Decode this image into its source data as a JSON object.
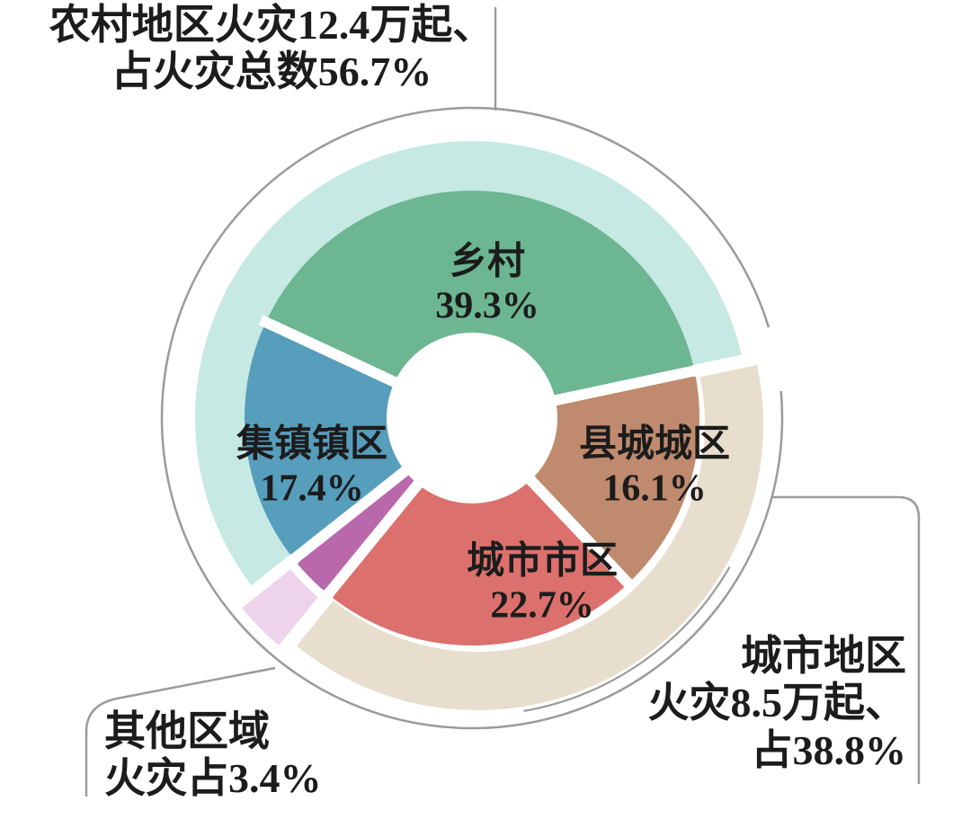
{
  "chart_data": {
    "type": "pie",
    "variant": "donut with grouped outer ring and callouts",
    "title": "",
    "unit": "percent",
    "legend_position": "none",
    "slices": [
      {
        "id": "xiangcun",
        "label": "乡村",
        "value": 39.3,
        "pct_label": "39.3%",
        "color": "#6cb691",
        "group": "rural",
        "label_on_slice": true
      },
      {
        "id": "jizhen",
        "label": "集镇镇区",
        "value": 17.4,
        "pct_label": "17.4%",
        "color": "#579dbc",
        "group": "rural",
        "label_on_slice": true
      },
      {
        "id": "qita",
        "label": "其他区域",
        "value": 3.4,
        "pct_label": "3.4%",
        "color": "#b968ac",
        "group": "other",
        "label_on_slice": false
      },
      {
        "id": "chengshi_shiqu",
        "label": "城市市区",
        "value": 22.7,
        "pct_label": "22.7%",
        "color": "#dc706d",
        "group": "urban",
        "label_on_slice": true
      },
      {
        "id": "xiancheng",
        "label": "县城城区",
        "value": 16.1,
        "pct_label": "16.1%",
        "color": "#bf8a6e",
        "group": "urban",
        "label_on_slice": true
      }
    ],
    "groups": [
      {
        "id": "rural",
        "label": "农村地区",
        "ring_color": "#c6e9e4",
        "total_pct": 56.7,
        "fires": "12.4万起"
      },
      {
        "id": "other",
        "label": "其他区域",
        "ring_color": "#edd4ea",
        "total_pct": 3.4
      },
      {
        "id": "urban",
        "label": "城市地区",
        "ring_color": "#e7decd",
        "total_pct": 38.8,
        "fires": "8.5万起"
      }
    ],
    "annotations": [
      "农村地区火灾12.4万起、占火灾总数56.7%",
      "其他区域火灾占3.4%",
      "城市地区火灾8.5万起、占38.8%"
    ]
  },
  "slice_labels": {
    "xiangcun": {
      "name": "乡村",
      "pct": "39.3%"
    },
    "jizhen": {
      "name": "集镇镇区",
      "pct": "17.4%"
    },
    "xiancheng": {
      "name": "县城城区",
      "pct": "16.1%"
    },
    "chengshi": {
      "name": "城市市区",
      "pct": "22.7%"
    }
  },
  "callouts": {
    "rural": {
      "line1": "农村地区火灾12.4万起、",
      "line2": "占火灾总数56.7%"
    },
    "other": {
      "line1": "其他区域",
      "line2": "火灾占3.4%"
    },
    "urban": {
      "line1": "城市地区",
      "line2": "火灾8.5万起、",
      "line3": "占38.8%"
    }
  },
  "colors": {
    "leader_line": "#9b9b9b",
    "text": "#1c1c1c",
    "background": "#ffffff",
    "gap": "#ffffff"
  }
}
